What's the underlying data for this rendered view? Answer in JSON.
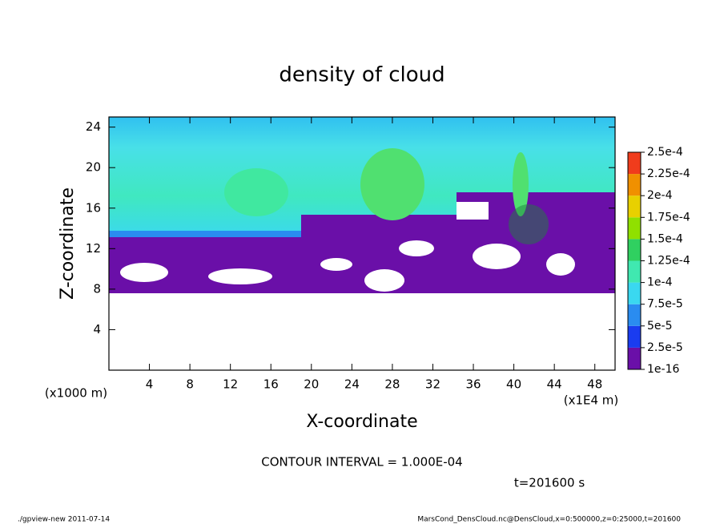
{
  "chart_data": {
    "type": "contour",
    "title": "density of cloud",
    "x_label": "X-coordinate",
    "y_label": "Z-coordinate",
    "y_unit_label": "(x1000 m)",
    "x_unit_label": "(x1E4 m)",
    "xlim": [
      0,
      50
    ],
    "ylim": [
      0,
      25
    ],
    "xticks": [
      4,
      8,
      12,
      16,
      20,
      24,
      28,
      32,
      36,
      40,
      44,
      48
    ],
    "yticks": [
      4,
      8,
      12,
      16,
      20,
      24
    ],
    "colorbar": {
      "levels": [
        {
          "value": 1e-16,
          "label": "1e-16"
        },
        {
          "value": 2.5e-05,
          "label": "2.5e-5"
        },
        {
          "value": 5e-05,
          "label": "5e-5"
        },
        {
          "value": 7.5e-05,
          "label": "7.5e-5"
        },
        {
          "value": 0.0001,
          "label": "1e-4"
        },
        {
          "value": 0.000125,
          "label": "1.25e-4"
        },
        {
          "value": 0.00015,
          "label": "1.5e-4"
        },
        {
          "value": 0.000175,
          "label": "1.75e-4"
        },
        {
          "value": 0.0002,
          "label": "2e-4"
        },
        {
          "value": 0.000225,
          "label": "2.25e-4"
        },
        {
          "value": 0.00025,
          "label": "2.5e-4"
        }
      ],
      "colors": [
        "#6a0fa8",
        "#1a3cf0",
        "#2a8cf0",
        "#3ad8f0",
        "#40e8b0",
        "#30d060",
        "#90e000",
        "#e8d000",
        "#f09000",
        "#f03c1c",
        "#f8a0a8"
      ]
    },
    "annotations": {
      "contour_interval": "CONTOUR INTERVAL = 1.000E-04",
      "time": "t=201600 s",
      "footer_left": "./gpview-new  2011-07-14",
      "footer_right": "MarsCond_DensCloud.nc@DensCloud,x=0:500000,z=0:25000,t=201600"
    }
  }
}
